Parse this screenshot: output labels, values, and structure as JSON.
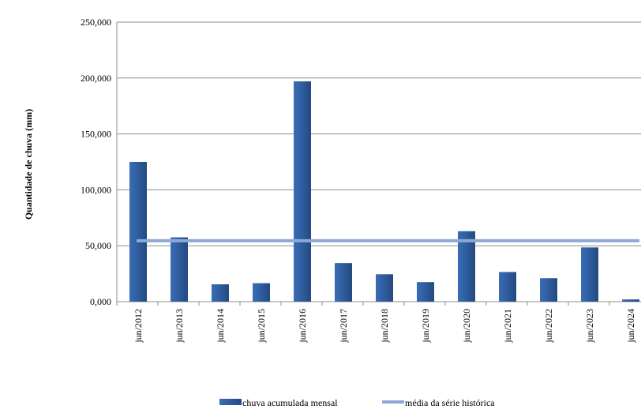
{
  "chart_data": {
    "type": "bar",
    "title": "",
    "xlabel": "",
    "ylabel": "Quantidade de chuva (mm)",
    "categories": [
      "jun/2012",
      "jun/2013",
      "jun/2014",
      "jun/2015",
      "jun/2016",
      "jun/2017",
      "jun/2018",
      "jun/2019",
      "jun/2020",
      "jun/2021",
      "jun/2022",
      "jun/2023",
      "jun/2024"
    ],
    "series": [
      {
        "name": "chuva acumulada mensal",
        "type": "bar",
        "color": "#2E5C9E",
        "values": [
          125.0,
          57.5,
          15.5,
          16.5,
          197.0,
          34.5,
          24.5,
          17.5,
          63.0,
          26.5,
          21.0,
          48.5,
          2.0
        ]
      },
      {
        "name": "média da série histórica",
        "type": "line",
        "color": "#8EA8D6",
        "values": [
          54.5,
          54.5,
          54.5,
          54.5,
          54.5,
          54.5,
          54.5,
          54.5,
          54.5,
          54.5,
          54.5,
          54.5,
          54.5
        ]
      }
    ],
    "ylim": [
      0,
      250
    ],
    "yticks": [
      "0,000",
      "50,000",
      "100,000",
      "150,000",
      "200,000",
      "250,000"
    ],
    "grid": true,
    "legend": "bottom"
  }
}
